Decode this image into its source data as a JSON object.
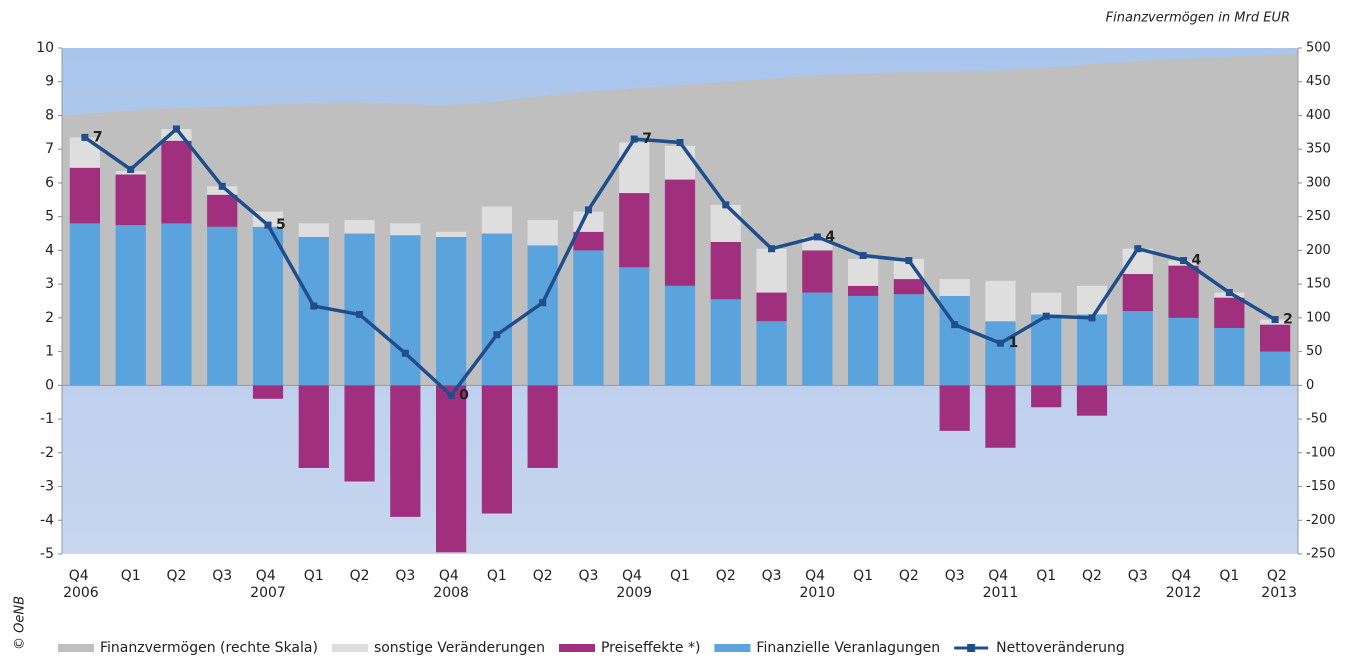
{
  "chart_data": {
    "type": "bar",
    "annotation": "Finanzvermögen in Mrd EUR",
    "credit": "© OeNB",
    "categories": [
      "Q4 2006",
      "Q1",
      "Q2",
      "Q3",
      "Q4 2007",
      "Q1",
      "Q2",
      "Q3",
      "Q4 2008",
      "Q1",
      "Q2",
      "Q3",
      "Q4 2009",
      "Q1",
      "Q2",
      "Q3",
      "Q4 2010",
      "Q1",
      "Q2",
      "Q3",
      "Q4 2011",
      "Q1",
      "Q2",
      "Q3",
      "Q4 2012",
      "Q1",
      "Q2 2013"
    ],
    "ylim": [
      -5,
      10
    ],
    "yticks": [
      -5,
      -4,
      -3,
      -2,
      -1,
      0,
      1,
      2,
      3,
      4,
      5,
      6,
      7,
      8,
      9,
      10
    ],
    "y2lim": [
      -250,
      500
    ],
    "y2ticks": [
      -250,
      -200,
      -150,
      -100,
      -50,
      0,
      50,
      100,
      150,
      200,
      250,
      300,
      350,
      400,
      450,
      500
    ],
    "series": [
      {
        "name": "Finanzvermögen (rechte Skala)",
        "type": "area",
        "axis": "y2",
        "color": "#bfbfbf",
        "values": [
          400,
          405,
          410,
          412,
          415,
          418,
          420,
          418,
          415,
          420,
          428,
          435,
          440,
          445,
          450,
          455,
          460,
          462,
          465,
          465,
          468,
          472,
          478,
          482,
          485,
          488,
          492
        ]
      },
      {
        "name": "sonstige Veränderungen",
        "type": "bar",
        "color": "#dedede",
        "values": [
          0.9,
          0.1,
          0.35,
          0.25,
          0.45,
          0.4,
          0.4,
          0.35,
          0.15,
          0.8,
          0.75,
          0.6,
          1.5,
          1.0,
          1.1,
          1.3,
          0.4,
          0.8,
          0.6,
          0.5,
          1.2,
          0.65,
          0.85,
          0.75,
          0.15,
          0.15,
          0.15
        ]
      },
      {
        "name": "Preiseffekte *)",
        "type": "bar",
        "color": "#a0307e",
        "values": [
          1.65,
          1.5,
          2.45,
          0.95,
          -0.4,
          -2.45,
          -2.85,
          -3.9,
          -4.95,
          -3.8,
          -2.45,
          0.55,
          2.2,
          3.15,
          1.7,
          0.85,
          1.25,
          0.3,
          0.45,
          -1.35,
          -1.85,
          -0.65,
          -0.9,
          1.1,
          1.55,
          0.9,
          0.8
        ]
      },
      {
        "name": "Finanzielle Veranlagungen",
        "type": "bar",
        "color": "#5ba3dc",
        "values": [
          4.8,
          4.75,
          4.8,
          4.7,
          4.7,
          4.4,
          4.5,
          4.45,
          4.4,
          4.5,
          4.15,
          4.0,
          3.5,
          2.95,
          2.55,
          1.9,
          2.75,
          2.65,
          2.7,
          2.65,
          1.9,
          2.1,
          2.1,
          2.2,
          2.0,
          1.7,
          1.0
        ]
      },
      {
        "name": "Nettoveränderung",
        "type": "line",
        "color": "#1f4e8c",
        "values": [
          7.35,
          6.4,
          7.6,
          5.9,
          4.75,
          2.35,
          2.1,
          0.95,
          -0.3,
          1.5,
          2.45,
          5.2,
          7.3,
          7.2,
          5.35,
          4.05,
          4.4,
          3.85,
          3.7,
          1.8,
          1.25,
          2.05,
          2.0,
          4.05,
          3.7,
          2.75,
          1.95
        ],
        "value_labels": [
          "7",
          null,
          null,
          null,
          "5",
          null,
          null,
          null,
          "0",
          null,
          null,
          null,
          "7",
          null,
          null,
          null,
          "4",
          null,
          null,
          null,
          "1",
          null,
          null,
          null,
          "4",
          null,
          "2"
        ]
      }
    ]
  }
}
